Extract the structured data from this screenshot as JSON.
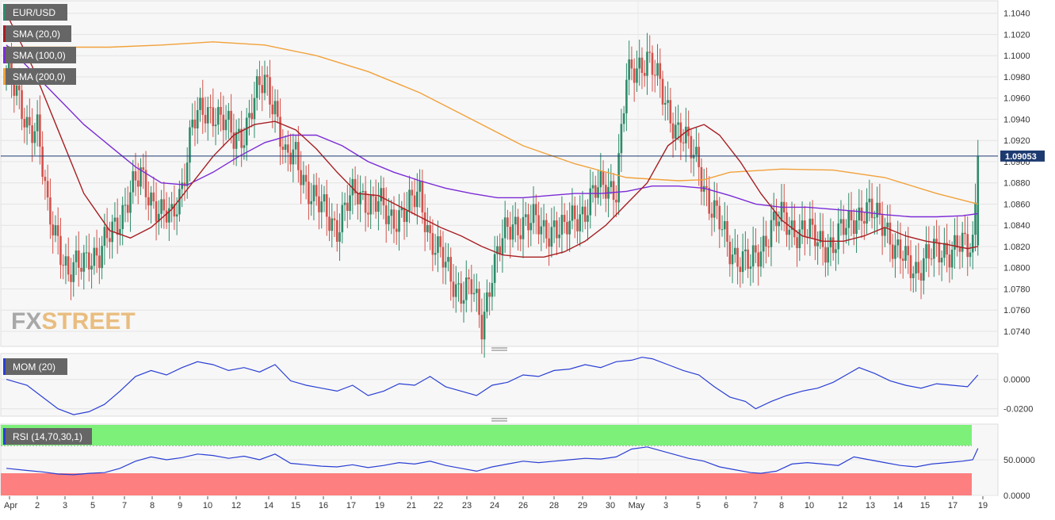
{
  "symbol": "EUR/USD",
  "watermark": {
    "prefix": "FX",
    "suffix": "STREET",
    "color": "#e6b36a"
  },
  "colors": {
    "up": "#2e8b6a",
    "down": "#d4524b",
    "sma20": "#a81e22",
    "sma100": "#7b2bd6",
    "sma200": "#f2a13a",
    "panel_bg": "#f7f7f7",
    "grid": "#e4e4e4",
    "mom": "#2a3fd4",
    "rsi": "#2a3fd4",
    "rsi_over": "#7df07a",
    "rsi_under": "#fd7f7f",
    "label_bg": "#666666",
    "price_tag": "#1d3a70"
  },
  "legend": [
    {
      "label": "SMA (20,0)",
      "color": "#a81e22"
    },
    {
      "label": "SMA (100,0)",
      "color": "#7b2bd6"
    },
    {
      "label": "SMA (200,0)",
      "color": "#f2a13a"
    }
  ],
  "current_price_label": "1.09053",
  "mom_label": "MOM (20)",
  "rsi_label": "RSI (14,70,30,1)",
  "chart_data": [
    {
      "type": "candlestick",
      "title": "EUR/USD",
      "x_tick_labels": [
        "Apr",
        "2",
        "3",
        "5",
        "7",
        "8",
        "9",
        "10",
        "12",
        "14",
        "15",
        "16",
        "17",
        "19",
        "21",
        "22",
        "23",
        "24",
        "26",
        "28",
        "29",
        "30",
        "May",
        "3",
        "5",
        "6",
        "7",
        "8",
        "10",
        "12",
        "13",
        "14",
        "15",
        "17",
        "19"
      ],
      "ylim": [
        1.0725,
        1.1045
      ],
      "y_ticks": [
        "1.0740",
        "1.0760",
        "1.0780",
        "1.0800",
        "1.0820",
        "1.0840",
        "1.0860",
        "1.0880",
        "1.0900",
        "1.0920",
        "1.0940",
        "1.0960",
        "1.0980",
        "1.1000",
        "1.1020",
        "1.1040"
      ],
      "last_price": 1.09053,
      "close_path": [
        [
          0,
          1.0985
        ],
        [
          4,
          1.096
        ],
        [
          8,
          1.0938
        ],
        [
          12,
          1.0932
        ],
        [
          16,
          1.085
        ],
        [
          20,
          1.083
        ],
        [
          24,
          1.0792
        ],
        [
          28,
          1.08
        ],
        [
          32,
          1.0815
        ],
        [
          36,
          1.081
        ],
        [
          40,
          1.083
        ],
        [
          44,
          1.085
        ],
        [
          48,
          1.087
        ],
        [
          52,
          1.0885
        ],
        [
          56,
          1.0868
        ],
        [
          60,
          1.085
        ],
        [
          64,
          1.0845
        ],
        [
          68,
          1.088
        ],
        [
          72,
          1.0935
        ],
        [
          76,
          1.0945
        ],
        [
          80,
          1.095
        ],
        [
          84,
          1.0938
        ],
        [
          88,
          1.092
        ],
        [
          92,
          1.093
        ],
        [
          96,
          1.0958
        ],
        [
          100,
          1.0975
        ],
        [
          104,
          1.0955
        ],
        [
          108,
          1.09
        ],
        [
          112,
          1.0905
        ],
        [
          116,
          1.088
        ],
        [
          120,
          1.086
        ],
        [
          124,
          1.085
        ],
        [
          128,
          1.084
        ],
        [
          132,
          1.086
        ],
        [
          136,
          1.087
        ],
        [
          140,
          1.0865
        ],
        [
          144,
          1.086
        ],
        [
          148,
          1.0845
        ],
        [
          152,
          1.0852
        ],
        [
          156,
          1.0856
        ],
        [
          160,
          1.087
        ],
        [
          164,
          1.083
        ],
        [
          168,
          1.081
        ],
        [
          172,
          1.079
        ],
        [
          176,
          1.078
        ],
        [
          180,
          1.078
        ],
        [
          184,
          1.0745
        ],
        [
          188,
          1.08
        ],
        [
          192,
          1.0825
        ],
        [
          196,
          1.084
        ],
        [
          200,
          1.0845
        ],
        [
          204,
          1.0842
        ],
        [
          208,
          1.0835
        ],
        [
          212,
          1.084
        ],
        [
          216,
          1.0832
        ],
        [
          220,
          1.085
        ],
        [
          224,
          1.0855
        ],
        [
          228,
          1.087
        ],
        [
          232,
          1.088
        ],
        [
          236,
          1.0875
        ],
        [
          240,
          1.0975
        ],
        [
          244,
          1.099
        ],
        [
          248,
          1.1
        ],
        [
          252,
          1.0975
        ],
        [
          256,
          1.095
        ],
        [
          260,
          1.093
        ],
        [
          264,
          1.0912
        ],
        [
          268,
          1.09
        ],
        [
          272,
          1.086
        ],
        [
          276,
          1.084
        ],
        [
          280,
          1.082
        ],
        [
          284,
          1.0808
        ],
        [
          288,
          1.08
        ],
        [
          292,
          1.082
        ],
        [
          296,
          1.084
        ],
        [
          300,
          1.0845
        ],
        [
          304,
          1.0838
        ],
        [
          308,
          1.0835
        ],
        [
          312,
          1.0828
        ],
        [
          316,
          1.0825
        ],
        [
          320,
          1.082
        ],
        [
          324,
          1.0835
        ],
        [
          328,
          1.085
        ],
        [
          332,
          1.0852
        ],
        [
          336,
          1.0848
        ],
        [
          340,
          1.0845
        ],
        [
          344,
          1.0815
        ],
        [
          348,
          1.0805
        ],
        [
          352,
          1.08
        ],
        [
          356,
          1.081
        ],
        [
          360,
          1.0812
        ],
        [
          364,
          1.0818
        ],
        [
          368,
          1.0822
        ],
        [
          372,
          1.0815
        ],
        [
          374,
          1.0822
        ],
        [
          376,
          1.09053
        ]
      ],
      "sma20_path": [
        [
          0,
          1.104
        ],
        [
          10,
          1.099
        ],
        [
          20,
          1.093
        ],
        [
          30,
          1.087
        ],
        [
          40,
          1.0835
        ],
        [
          48,
          1.0828
        ],
        [
          56,
          1.0838
        ],
        [
          64,
          1.0855
        ],
        [
          72,
          1.088
        ],
        [
          80,
          1.0905
        ],
        [
          88,
          1.0925
        ],
        [
          96,
          1.0935
        ],
        [
          104,
          1.0938
        ],
        [
          112,
          1.093
        ],
        [
          120,
          1.0912
        ],
        [
          128,
          1.089
        ],
        [
          136,
          1.087
        ],
        [
          144,
          1.0868
        ],
        [
          152,
          1.0858
        ],
        [
          160,
          1.0848
        ],
        [
          168,
          1.0838
        ],
        [
          176,
          1.083
        ],
        [
          184,
          1.082
        ],
        [
          192,
          1.0812
        ],
        [
          200,
          1.081
        ],
        [
          208,
          1.081
        ],
        [
          216,
          1.0815
        ],
        [
          224,
          1.0825
        ],
        [
          232,
          1.084
        ],
        [
          240,
          1.086
        ],
        [
          248,
          1.088
        ],
        [
          256,
          1.0915
        ],
        [
          264,
          1.093
        ],
        [
          270,
          1.0935
        ],
        [
          276,
          1.0925
        ],
        [
          284,
          1.09
        ],
        [
          292,
          1.087
        ],
        [
          300,
          1.0845
        ],
        [
          308,
          1.083
        ],
        [
          316,
          1.0825
        ],
        [
          324,
          1.0825
        ],
        [
          332,
          1.083
        ],
        [
          340,
          1.0838
        ],
        [
          348,
          1.083
        ],
        [
          356,
          1.0825
        ],
        [
          364,
          1.0822
        ],
        [
          372,
          1.0818
        ],
        [
          376,
          1.082
        ]
      ],
      "sma100_path": [
        [
          0,
          1.101
        ],
        [
          10,
          1.0985
        ],
        [
          20,
          1.096
        ],
        [
          30,
          1.0935
        ],
        [
          40,
          1.0915
        ],
        [
          50,
          1.0895
        ],
        [
          60,
          1.088
        ],
        [
          70,
          1.0878
        ],
        [
          80,
          1.089
        ],
        [
          90,
          1.0905
        ],
        [
          100,
          1.0918
        ],
        [
          110,
          1.0925
        ],
        [
          120,
          1.0925
        ],
        [
          130,
          1.0915
        ],
        [
          140,
          1.09
        ],
        [
          150,
          1.089
        ],
        [
          160,
          1.0882
        ],
        [
          170,
          1.0875
        ],
        [
          180,
          1.087
        ],
        [
          190,
          1.0866
        ],
        [
          200,
          1.0866
        ],
        [
          210,
          1.0868
        ],
        [
          220,
          1.087
        ],
        [
          230,
          1.087
        ],
        [
          240,
          1.0872
        ],
        [
          250,
          1.0877
        ],
        [
          260,
          1.0877
        ],
        [
          270,
          1.0875
        ],
        [
          280,
          1.0868
        ],
        [
          290,
          1.086
        ],
        [
          300,
          1.0857
        ],
        [
          310,
          1.0857
        ],
        [
          320,
          1.0855
        ],
        [
          330,
          1.0853
        ],
        [
          340,
          1.085
        ],
        [
          350,
          1.0848
        ],
        [
          360,
          1.0848
        ],
        [
          370,
          1.0849
        ],
        [
          376,
          1.0851
        ]
      ],
      "sma200_path": [
        [
          0,
          1.1008
        ],
        [
          20,
          1.1008
        ],
        [
          40,
          1.1008
        ],
        [
          60,
          1.101
        ],
        [
          80,
          1.1013
        ],
        [
          100,
          1.101
        ],
        [
          120,
          1.1
        ],
        [
          140,
          1.0985
        ],
        [
          160,
          1.0965
        ],
        [
          180,
          1.094
        ],
        [
          200,
          1.0915
        ],
        [
          220,
          1.0898
        ],
        [
          240,
          1.0885
        ],
        [
          260,
          1.0882
        ],
        [
          270,
          1.0883
        ],
        [
          280,
          1.089
        ],
        [
          300,
          1.0893
        ],
        [
          320,
          1.0892
        ],
        [
          340,
          1.0885
        ],
        [
          360,
          1.087
        ],
        [
          376,
          1.086
        ]
      ]
    },
    {
      "type": "line",
      "title": "MOM (20)",
      "ylim": [
        -0.025,
        0.017
      ],
      "y_ticks": [
        "0.0000",
        "-0.0200"
      ],
      "path": [
        [
          0,
          0.0
        ],
        [
          8,
          -0.004
        ],
        [
          14,
          -0.012
        ],
        [
          20,
          -0.02
        ],
        [
          26,
          -0.024
        ],
        [
          32,
          -0.022
        ],
        [
          38,
          -0.017
        ],
        [
          44,
          -0.008
        ],
        [
          50,
          0.002
        ],
        [
          56,
          0.006
        ],
        [
          62,
          0.003
        ],
        [
          68,
          0.008
        ],
        [
          74,
          0.012
        ],
        [
          80,
          0.01
        ],
        [
          86,
          0.006
        ],
        [
          92,
          0.008
        ],
        [
          98,
          0.005
        ],
        [
          104,
          0.01
        ],
        [
          110,
          -0.001
        ],
        [
          116,
          -0.004
        ],
        [
          122,
          -0.006
        ],
        [
          128,
          -0.008
        ],
        [
          134,
          -0.004
        ],
        [
          140,
          -0.011
        ],
        [
          146,
          -0.008
        ],
        [
          152,
          -0.003
        ],
        [
          158,
          -0.004
        ],
        [
          164,
          0.002
        ],
        [
          170,
          -0.005
        ],
        [
          176,
          -0.008
        ],
        [
          182,
          -0.011
        ],
        [
          188,
          -0.004
        ],
        [
          194,
          -0.002
        ],
        [
          200,
          0.003
        ],
        [
          206,
          0.002
        ],
        [
          212,
          0.006
        ],
        [
          218,
          0.007
        ],
        [
          224,
          0.01
        ],
        [
          230,
          0.008
        ],
        [
          236,
          0.012
        ],
        [
          242,
          0.013
        ],
        [
          246,
          0.015
        ],
        [
          250,
          0.014
        ],
        [
          256,
          0.01
        ],
        [
          262,
          0.006
        ],
        [
          268,
          0.003
        ],
        [
          274,
          -0.005
        ],
        [
          280,
          -0.012
        ],
        [
          286,
          -0.015
        ],
        [
          290,
          -0.02
        ],
        [
          296,
          -0.015
        ],
        [
          302,
          -0.011
        ],
        [
          308,
          -0.008
        ],
        [
          314,
          -0.006
        ],
        [
          320,
          -0.002
        ],
        [
          326,
          0.004
        ],
        [
          330,
          0.008
        ],
        [
          336,
          0.004
        ],
        [
          342,
          -0.001
        ],
        [
          348,
          -0.004
        ],
        [
          354,
          -0.006
        ],
        [
          360,
          -0.003
        ],
        [
          366,
          -0.004
        ],
        [
          372,
          -0.005
        ],
        [
          376,
          0.003
        ]
      ]
    },
    {
      "type": "line",
      "title": "RSI (14,70,30,1)",
      "ylim": [
        0,
        100
      ],
      "y_ticks": [
        "50.0000",
        "0.0000"
      ],
      "overbought": 70,
      "oversold": 30,
      "path": [
        [
          0,
          38
        ],
        [
          8,
          35
        ],
        [
          14,
          33
        ],
        [
          20,
          30
        ],
        [
          26,
          29
        ],
        [
          32,
          31
        ],
        [
          38,
          32
        ],
        [
          44,
          38
        ],
        [
          50,
          48
        ],
        [
          56,
          54
        ],
        [
          62,
          50
        ],
        [
          68,
          53
        ],
        [
          74,
          58
        ],
        [
          80,
          56
        ],
        [
          86,
          52
        ],
        [
          92,
          55
        ],
        [
          98,
          50
        ],
        [
          104,
          58
        ],
        [
          110,
          45
        ],
        [
          116,
          43
        ],
        [
          122,
          41
        ],
        [
          128,
          40
        ],
        [
          134,
          43
        ],
        [
          140,
          39
        ],
        [
          146,
          42
        ],
        [
          152,
          46
        ],
        [
          158,
          44
        ],
        [
          164,
          48
        ],
        [
          170,
          42
        ],
        [
          176,
          38
        ],
        [
          182,
          34
        ],
        [
          188,
          40
        ],
        [
          194,
          44
        ],
        [
          200,
          48
        ],
        [
          206,
          46
        ],
        [
          212,
          48
        ],
        [
          218,
          50
        ],
        [
          224,
          52
        ],
        [
          230,
          51
        ],
        [
          236,
          54
        ],
        [
          242,
          65
        ],
        [
          248,
          68
        ],
        [
          252,
          64
        ],
        [
          258,
          58
        ],
        [
          264,
          52
        ],
        [
          270,
          48
        ],
        [
          276,
          40
        ],
        [
          282,
          36
        ],
        [
          288,
          32
        ],
        [
          292,
          31
        ],
        [
          298,
          34
        ],
        [
          304,
          44
        ],
        [
          310,
          46
        ],
        [
          316,
          44
        ],
        [
          322,
          42
        ],
        [
          328,
          54
        ],
        [
          334,
          50
        ],
        [
          340,
          46
        ],
        [
          346,
          42
        ],
        [
          352,
          40
        ],
        [
          358,
          44
        ],
        [
          364,
          46
        ],
        [
          370,
          48
        ],
        [
          374,
          50
        ],
        [
          376,
          66
        ]
      ]
    }
  ]
}
